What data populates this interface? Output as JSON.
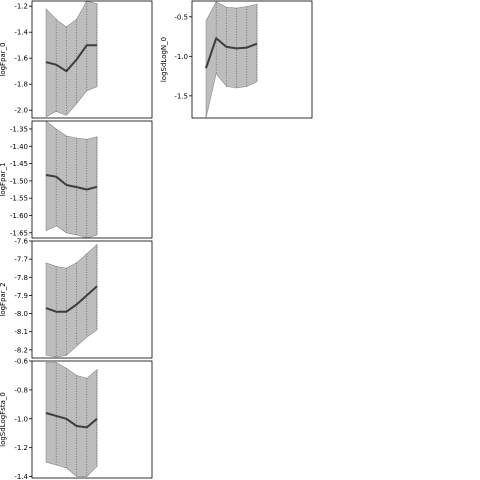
{
  "chart_data": [
    {
      "type": "line",
      "ylabel": "logFpar_0",
      "x": [
        0,
        1,
        2,
        3,
        4,
        5
      ],
      "mean": [
        -1.63,
        -1.65,
        -1.7,
        -1.61,
        -1.5,
        -1.5
      ],
      "lower": [
        -2.05,
        -2.01,
        -2.04,
        -1.95,
        -1.85,
        -1.82
      ],
      "upper": [
        -1.22,
        -1.3,
        -1.36,
        -1.3,
        -1.16,
        -1.18
      ],
      "ylim": [
        -2.06,
        -1.16
      ],
      "yticks": [
        -1.2,
        -1.4,
        -1.6,
        -1.8,
        -2.0
      ],
      "ytick_labels": [
        "-1.2",
        "-1.4",
        "-1.6",
        "-1.8",
        "-2.0"
      ]
    },
    {
      "type": "line",
      "ylabel": "logFpar_1",
      "x": [
        0,
        1,
        2,
        3,
        4,
        5
      ],
      "mean": [
        -1.483,
        -1.488,
        -1.512,
        -1.518,
        -1.525,
        -1.517
      ],
      "lower": [
        -1.644,
        -1.63,
        -1.65,
        -1.656,
        -1.665,
        -1.657
      ],
      "upper": [
        -1.327,
        -1.35,
        -1.37,
        -1.376,
        -1.38,
        -1.373
      ],
      "ylim": [
        -1.665,
        -1.327
      ],
      "yticks": [
        -1.35,
        -1.4,
        -1.45,
        -1.5,
        -1.55,
        -1.6,
        -1.65
      ],
      "ytick_labels": [
        "-1.35",
        "-1.40",
        "-1.45",
        "-1.50",
        "-1.55",
        "-1.60",
        "-1.65"
      ]
    },
    {
      "type": "line",
      "ylabel": "logFpar_2",
      "x": [
        0,
        1,
        2,
        3,
        4,
        5
      ],
      "mean": [
        -7.97,
        -7.99,
        -7.99,
        -7.95,
        -7.9,
        -7.85
      ],
      "lower": [
        -8.23,
        -8.24,
        -8.23,
        -8.18,
        -8.13,
        -8.09
      ],
      "upper": [
        -7.72,
        -7.74,
        -7.75,
        -7.72,
        -7.67,
        -7.62
      ],
      "ylim": [
        -8.245,
        -7.6
      ],
      "yticks": [
        -7.6,
        -7.7,
        -7.8,
        -7.9,
        -8.0,
        -8.1,
        -8.2
      ],
      "ytick_labels": [
        "-7.6",
        "-7.7",
        "-7.8",
        "-7.9",
        "-8.0",
        "-8.1",
        "-8.2"
      ]
    },
    {
      "type": "line",
      "ylabel": "logSdLogFsta_0",
      "x": [
        0,
        1,
        2,
        3,
        4,
        5
      ],
      "mean": [
        -0.96,
        -0.98,
        -1.0,
        -1.05,
        -1.06,
        -1.0
      ],
      "lower": [
        -1.3,
        -1.32,
        -1.34,
        -1.4,
        -1.4,
        -1.33
      ],
      "upper": [
        -0.61,
        -0.61,
        -0.65,
        -0.7,
        -0.72,
        -0.66
      ],
      "ylim": [
        -1.41,
        -0.6
      ],
      "yticks": [
        -0.6,
        -0.8,
        -1.0,
        -1.2,
        -1.4
      ],
      "ytick_labels": [
        "-0.6",
        "-0.8",
        "-1.0",
        "-1.2",
        "-1.4"
      ]
    },
    {
      "type": "line",
      "ylabel": "logSdLogN_0",
      "x": [
        0,
        1,
        2,
        3,
        4,
        5
      ],
      "mean": [
        -1.15,
        -0.77,
        -0.88,
        -0.9,
        -0.89,
        -0.84
      ],
      "lower": [
        -1.78,
        -1.22,
        -1.38,
        -1.4,
        -1.38,
        -1.32
      ],
      "upper": [
        -0.55,
        -0.31,
        -0.38,
        -0.39,
        -0.37,
        -0.34
      ],
      "ylim": [
        -1.78,
        -0.3
      ],
      "yticks": [
        -0.5,
        -1.0,
        -1.5
      ],
      "ytick_labels": [
        "-0.5",
        "-1.0",
        "-1.5"
      ]
    }
  ],
  "colors": {
    "band_fill": "#bdbdbd",
    "band_edge": "#8a8a8a",
    "mean_line": "#3d3d3d",
    "vertical_grid": "#5a5a5a",
    "axes": "#000000"
  }
}
